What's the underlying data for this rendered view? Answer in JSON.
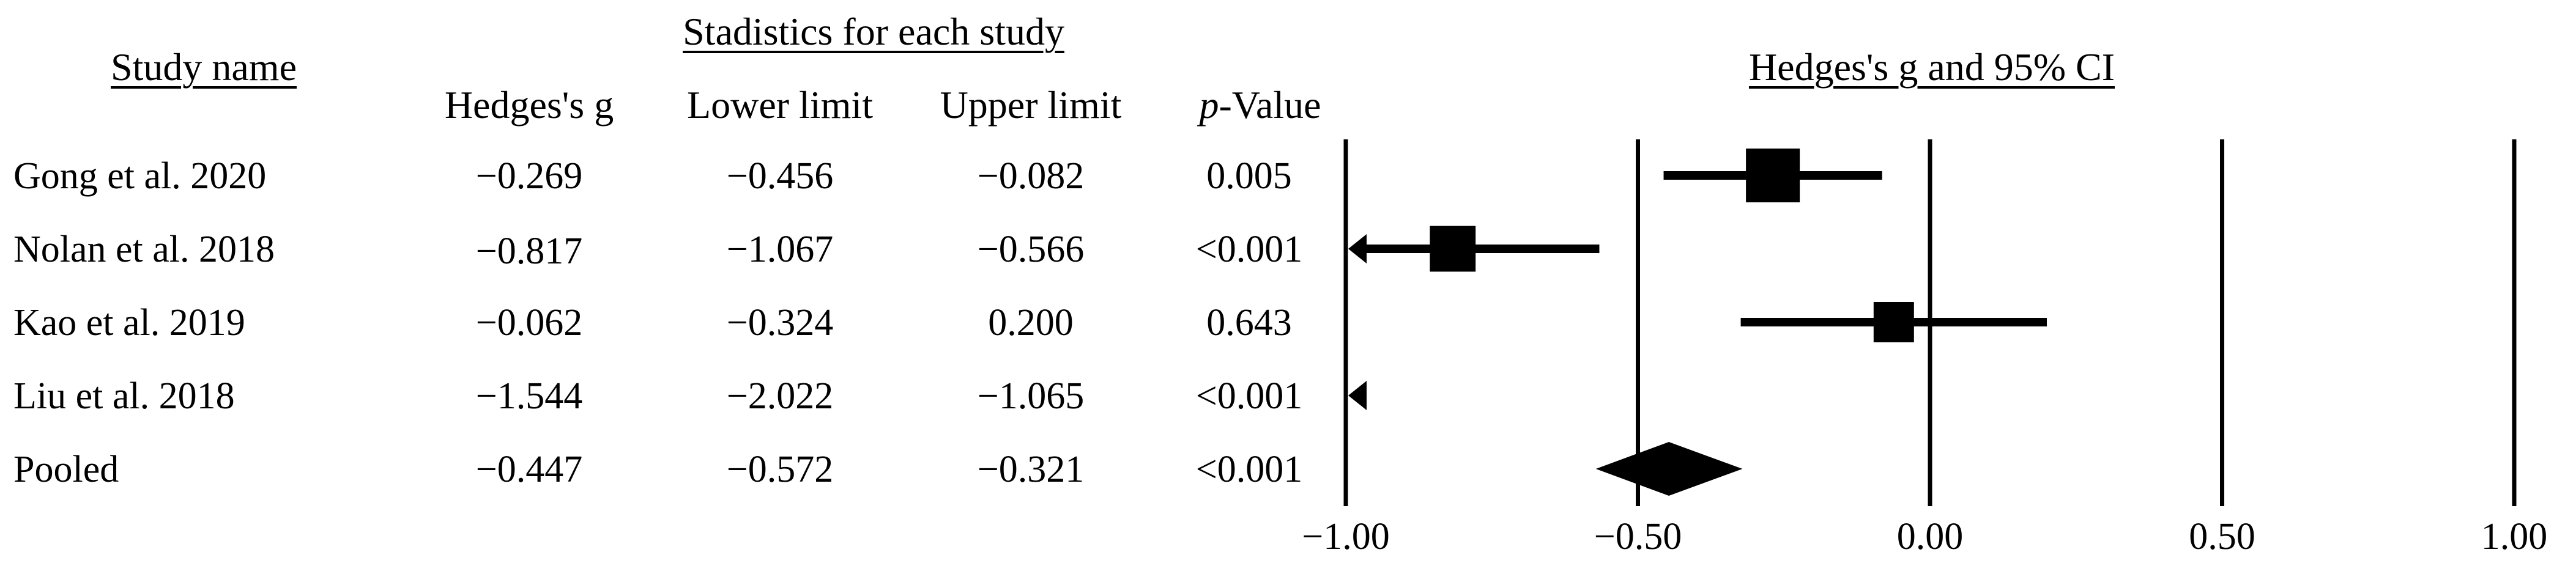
{
  "headers": {
    "study_name": "Study name",
    "stats_group": "Stadistics for each study",
    "hedges_g": "Hedges's g",
    "lower_limit": "Lower limit",
    "upper_limit": "Upper limit",
    "p_symbol": "p",
    "p_suffix": "-Value",
    "plot_title": "Hedges's g and 95% CI"
  },
  "rows": [
    {
      "study": "Gong et al. 2020",
      "g": "−0.269",
      "lower": "−0.456",
      "upper": "−0.082",
      "p": "0.005"
    },
    {
      "study": "Nolan et al. 2018",
      "g": "−0.817",
      "lower": "−1.067",
      "upper": "−0.566",
      "p": "<0.001"
    },
    {
      "study": "Kao et al. 2019",
      "g": "−0.062",
      "lower": "−0.324",
      "upper": "0.200",
      "p": "0.643"
    },
    {
      "study": "Liu et al. 2018",
      "g": "−1.544",
      "lower": "−2.022",
      "upper": "−1.065",
      "p": "<0.001"
    },
    {
      "study": "Pooled",
      "g": "−0.447",
      "lower": "−0.572",
      "upper": "−0.321",
      "p": "<0.001"
    }
  ],
  "chart_data": {
    "type": "forest",
    "title": "Hedges's g and 95% CI",
    "xlim": [
      -1.0,
      1.0
    ],
    "xticks": [
      -1.0,
      -0.5,
      0.0,
      0.5,
      1.0
    ],
    "xtick_labels": [
      "−1.00",
      "−0.50",
      "0.00",
      "0.50",
      "1.00"
    ],
    "grid": "vertical lines at ticks",
    "studies": [
      {
        "study": "Gong et al. 2020",
        "g": -0.269,
        "lower": -0.456,
        "upper": -0.082,
        "weight": 1.0,
        "marker": "square"
      },
      {
        "study": "Nolan et al. 2018",
        "g": -0.817,
        "lower": -1.067,
        "upper": -0.566,
        "weight": 0.85,
        "marker": "square"
      },
      {
        "study": "Kao et al. 2019",
        "g": -0.062,
        "lower": -0.324,
        "upper": 0.2,
        "weight": 0.75,
        "marker": "square"
      },
      {
        "study": "Liu et al. 2018",
        "g": -1.544,
        "lower": -2.022,
        "upper": -1.065,
        "weight": 0.7,
        "marker": "square"
      }
    ],
    "pooled": {
      "study": "Pooled",
      "g": -0.447,
      "lower": -0.572,
      "upper": -0.321,
      "marker": "diamond"
    }
  }
}
